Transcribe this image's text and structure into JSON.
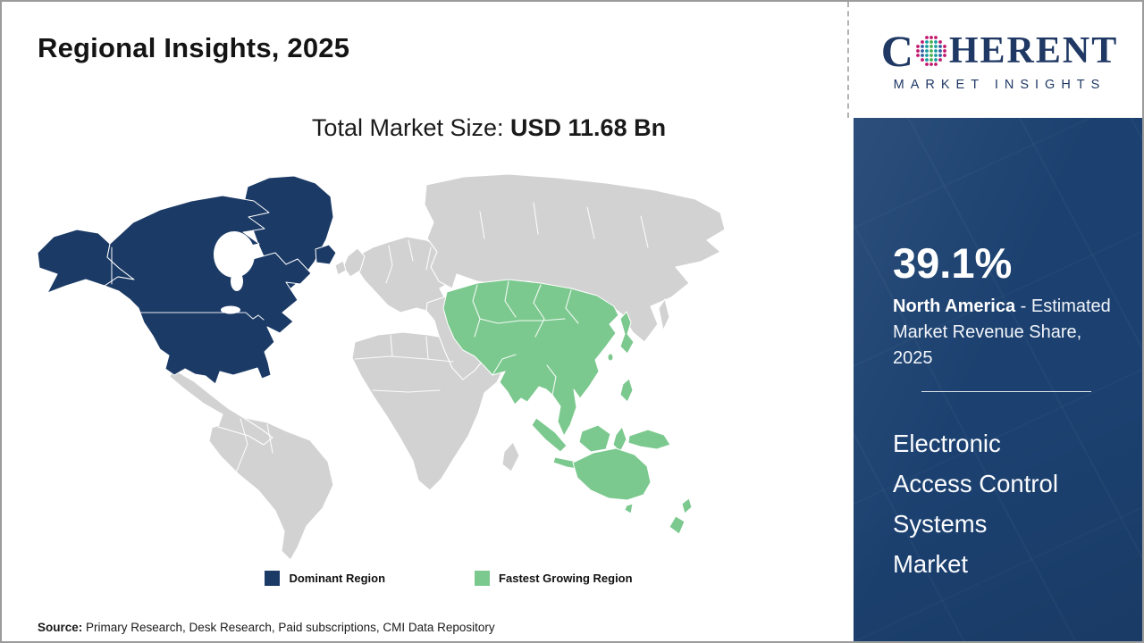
{
  "header": {
    "title": "Regional Insights, 2025"
  },
  "subtitle": {
    "prefix": "Total Market Size: ",
    "value": "USD 11.68 Bn"
  },
  "logo": {
    "word_start": "C",
    "word_end": "HERENT",
    "tagline": "MARKET INSIGHTS",
    "brand_color": "#1f3864"
  },
  "sidebar": {
    "share_value": "39.1%",
    "share_region": "North America",
    "share_desc": " - Estimated Market Revenue Share, 2025",
    "market_title_lines": {
      "0": "Electronic",
      "1": "Access Control",
      "2": "Systems",
      "3": "Market"
    },
    "panel_color": "#1c4170"
  },
  "map_data": {
    "type": "choropleth-world-map",
    "title": "Regional Insights, 2025",
    "total_market_size": "USD 11.68 Bn",
    "regions": [
      {
        "region": "North America",
        "status": "Dominant Region",
        "color": "#1b3a66",
        "share": "39.1%"
      },
      {
        "region": "Asia Pacific",
        "status": "Fastest Growing Region",
        "color": "#7cc98f"
      },
      {
        "region": "Rest of World",
        "status": "Not highlighted",
        "color": "#d2d2d2"
      }
    ]
  },
  "legend": {
    "0": {
      "label": "Dominant Region",
      "color": "#1b3a66"
    },
    "1": {
      "label": "Fastest Growing Region",
      "color": "#7cc98f"
    }
  },
  "source": {
    "label": "Source:",
    "text": " Primary Research, Desk Research, Paid subscriptions, CMI Data Repository"
  }
}
